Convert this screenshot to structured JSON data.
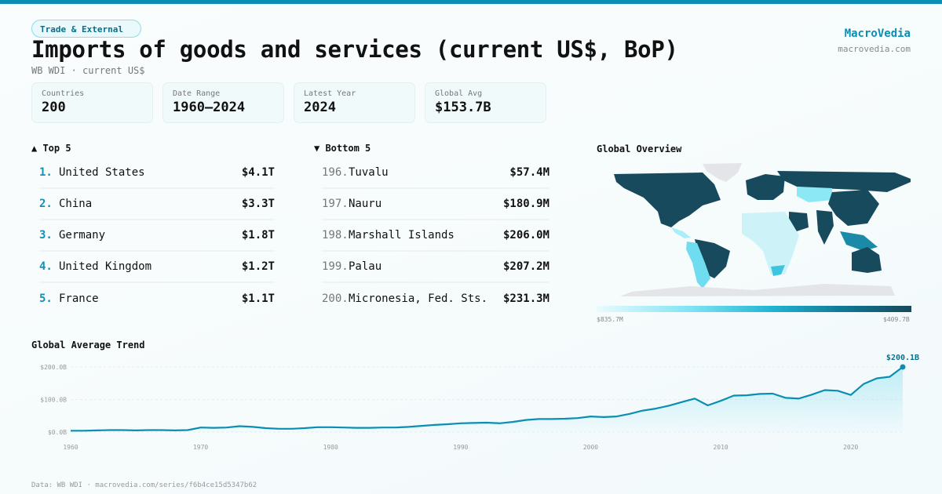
{
  "header": {
    "category": "Trade & External",
    "title": "Imports of goods and services (current US$, BoP)",
    "subtitle": "WB WDI · current US$",
    "brand": "MacroVedia",
    "brand_url": "macrovedia.com"
  },
  "stats": [
    {
      "label": "Countries",
      "value": "200"
    },
    {
      "label": "Date Range",
      "value": "1960–2024"
    },
    {
      "label": "Latest Year",
      "value": "2024"
    },
    {
      "label": "Global Avg",
      "value": "$153.7B"
    }
  ],
  "top5": {
    "title": "▲ Top 5",
    "items": [
      {
        "rank": "1.",
        "name": "United States",
        "value": "$4.1T"
      },
      {
        "rank": "2.",
        "name": "China",
        "value": "$3.3T"
      },
      {
        "rank": "3.",
        "name": "Germany",
        "value": "$1.8T"
      },
      {
        "rank": "4.",
        "name": "United Kingdom",
        "value": "$1.2T"
      },
      {
        "rank": "5.",
        "name": "France",
        "value": "$1.1T"
      }
    ]
  },
  "bottom5": {
    "title": "▼ Bottom 5",
    "items": [
      {
        "rank": "196.",
        "name": "Tuvalu",
        "value": "$57.4M"
      },
      {
        "rank": "197.",
        "name": "Nauru",
        "value": "$180.9M"
      },
      {
        "rank": "198.",
        "name": "Marshall Islands",
        "value": "$206.0M"
      },
      {
        "rank": "199.",
        "name": "Palau",
        "value": "$207.2M"
      },
      {
        "rank": "200.",
        "name": "Micronesia, Fed. Sts.",
        "value": "$231.3M"
      }
    ]
  },
  "map": {
    "title": "Global Overview",
    "legend_min": "$835.7M",
    "legend_max": "$409.7B",
    "colors": {
      "low": "#eafbfd",
      "mid": "#22b6d4",
      "high": "#174a5c",
      "nodata": "#e3e5e8"
    }
  },
  "chart_data": {
    "type": "area",
    "title": "Global Average Trend",
    "xlabel": "",
    "ylabel": "",
    "x": [
      1960,
      1961,
      1962,
      1963,
      1964,
      1965,
      1966,
      1967,
      1968,
      1969,
      1970,
      1971,
      1972,
      1973,
      1974,
      1975,
      1976,
      1977,
      1978,
      1979,
      1980,
      1981,
      1982,
      1983,
      1984,
      1985,
      1986,
      1987,
      1988,
      1989,
      1990,
      1991,
      1992,
      1993,
      1994,
      1995,
      1996,
      1997,
      1998,
      1999,
      2000,
      2001,
      2002,
      2003,
      2004,
      2005,
      2006,
      2007,
      2008,
      2009,
      2010,
      2011,
      2012,
      2013,
      2014,
      2015,
      2016,
      2017,
      2018,
      2019,
      2020,
      2021,
      2022,
      2023,
      2024
    ],
    "values": [
      4,
      4,
      5,
      6,
      6,
      5,
      6,
      6,
      5,
      6,
      14,
      13,
      14,
      18,
      16,
      12,
      10,
      10,
      12,
      15,
      15,
      14,
      13,
      13,
      14,
      14,
      16,
      19,
      22,
      24,
      27,
      28,
      29,
      27,
      31,
      37,
      40,
      40,
      41,
      43,
      48,
      46,
      48,
      56,
      66,
      72,
      81,
      92,
      103,
      82,
      96,
      112,
      113,
      117,
      118,
      105,
      103,
      115,
      129,
      127,
      114,
      148,
      165,
      170,
      200.1
    ],
    "unit": "B US$",
    "ylim": [
      0,
      200
    ],
    "yticks": [
      "$0.0B",
      "$100.0B",
      "$200.0B"
    ],
    "xticks": [
      "1960",
      "1970",
      "1980",
      "1990",
      "2000",
      "2010",
      "2020"
    ],
    "last_label": "$200.1B",
    "color": "#0a8fb3",
    "grid": true
  },
  "footer": "Data: WB WDI · macrovedia.com/series/f6b4ce15d5347b62"
}
